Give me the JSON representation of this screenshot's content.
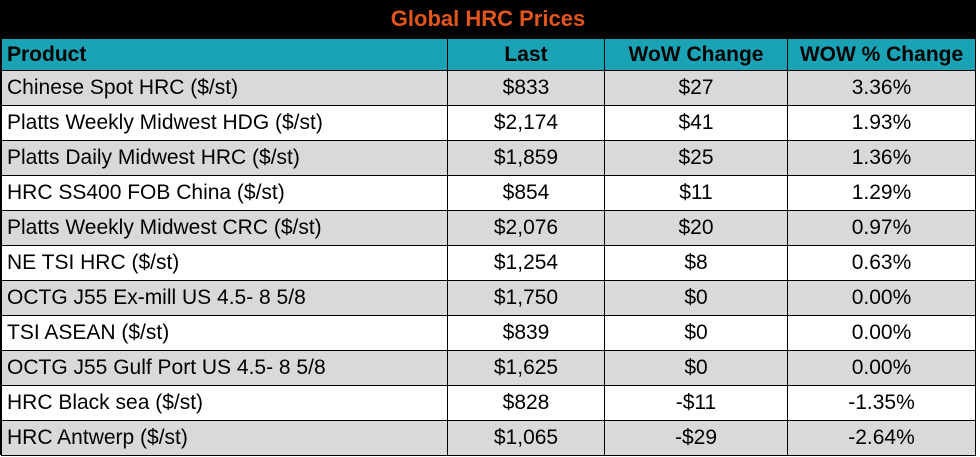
{
  "table": {
    "title": "Global HRC Prices",
    "columns": [
      "Product",
      "Last",
      "WoW Change",
      "WOW % Change"
    ],
    "rows": [
      {
        "product": "Chinese Spot HRC ($/st)",
        "last": "$833",
        "wow_change": "$27",
        "wow_pct": "3.36%"
      },
      {
        "product": "Platts Weekly Midwest HDG ($/st)",
        "last": "$2,174",
        "wow_change": "$41",
        "wow_pct": "1.93%"
      },
      {
        "product": "Platts Daily Midwest HRC ($/st)",
        "last": "$1,859",
        "wow_change": "$25",
        "wow_pct": "1.36%"
      },
      {
        "product": "HRC SS400 FOB China ($/st)",
        "last": "$854",
        "wow_change": "$11",
        "wow_pct": "1.29%"
      },
      {
        "product": "Platts Weekly Midwest CRC ($/st)",
        "last": "$2,076",
        "wow_change": "$20",
        "wow_pct": "0.97%"
      },
      {
        "product": "NE TSI HRC ($/st)",
        "last": "$1,254",
        "wow_change": "$8",
        "wow_pct": "0.63%"
      },
      {
        "product": "OCTG J55 Ex-mill US 4.5- 8 5/8",
        "last": "$1,750",
        "wow_change": "$0",
        "wow_pct": "0.00%"
      },
      {
        "product": "TSI ASEAN ($/st)",
        "last": "$839",
        "wow_change": "$0",
        "wow_pct": "0.00%"
      },
      {
        "product": "OCTG J55 Gulf Port US 4.5- 8 5/8",
        "last": "$1,625",
        "wow_change": "$0",
        "wow_pct": "0.00%"
      },
      {
        "product": "HRC Black sea ($/st)",
        "last": "$828",
        "wow_change": "-$11",
        "wow_pct": "-1.35%"
      },
      {
        "product": "HRC Antwerp ($/st)",
        "last": "$1,065",
        "wow_change": "-$29",
        "wow_pct": "-2.64%"
      }
    ]
  },
  "chart_data": {
    "type": "table",
    "title": "Global HRC Prices",
    "columns": [
      "Product",
      "Last",
      "WoW Change",
      "WOW % Change"
    ],
    "rows": [
      [
        "Chinese Spot HRC ($/st)",
        833,
        27,
        3.36
      ],
      [
        "Platts Weekly Midwest HDG ($/st)",
        2174,
        41,
        1.93
      ],
      [
        "Platts Daily Midwest HRC ($/st)",
        1859,
        25,
        1.36
      ],
      [
        "HRC SS400 FOB China ($/st)",
        854,
        11,
        1.29
      ],
      [
        "Platts Weekly Midwest CRC ($/st)",
        2076,
        20,
        0.97
      ],
      [
        "NE TSI HRC ($/st)",
        1254,
        8,
        0.63
      ],
      [
        "OCTG J55 Ex-mill US 4.5- 8 5/8",
        1750,
        0,
        0.0
      ],
      [
        "TSI ASEAN ($/st)",
        839,
        0,
        0.0
      ],
      [
        "OCTG J55 Gulf Port US 4.5- 8 5/8",
        1625,
        0,
        0.0
      ],
      [
        "HRC Black sea ($/st)",
        828,
        -11,
        -1.35
      ],
      [
        "HRC Antwerp ($/st)",
        1065,
        -29,
        -2.64
      ]
    ]
  },
  "colors": {
    "title_background": "#000000",
    "title_text": "#e2561b",
    "header_background": "#1aa3b5",
    "shaded_row": "#d9d9d9",
    "plain_row": "#ffffff"
  }
}
